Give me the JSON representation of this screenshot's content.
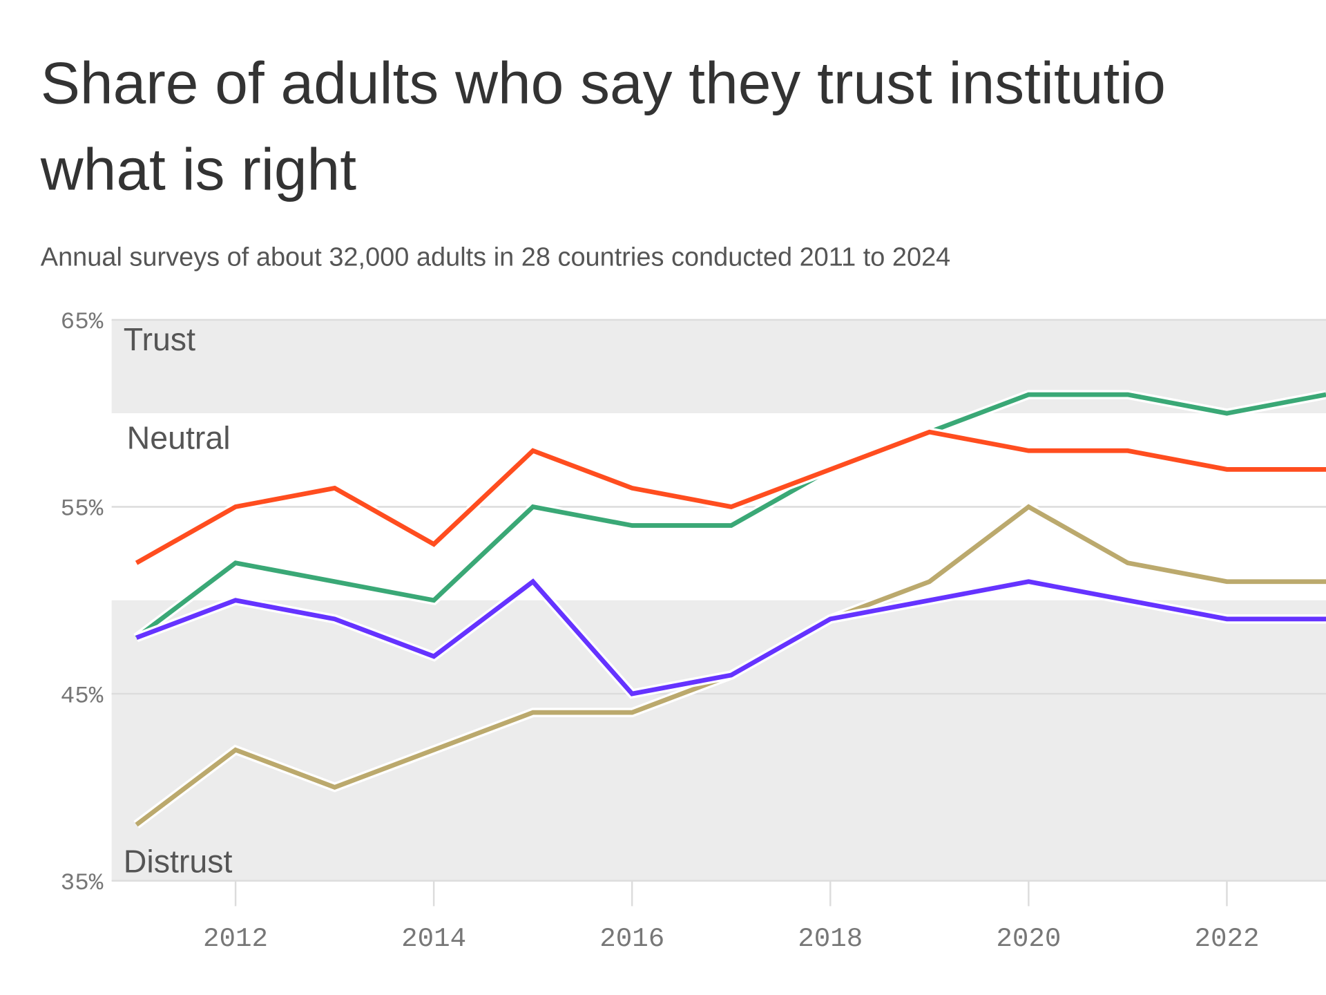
{
  "chart_data": {
    "type": "line",
    "title": [
      "Share of adults who say they trust institutio",
      "what is right"
    ],
    "subtitle": "Annual surveys of about 32,000 adults in 28 countries conducted 2011 to 2024",
    "x": [
      2011,
      2012,
      2013,
      2014,
      2015,
      2016,
      2017,
      2018,
      2019,
      2020,
      2021,
      2022,
      2023
    ],
    "series": [
      {
        "color": "#bba96d",
        "values": [
          38,
          42,
          40,
          42,
          44,
          44,
          46,
          49,
          51,
          55,
          52,
          51,
          51
        ]
      },
      {
        "color": "#3aa876",
        "values": [
          48,
          52,
          51,
          50,
          55,
          54,
          54,
          57,
          59,
          61,
          61,
          60,
          61
        ]
      },
      {
        "color": "#6533ff",
        "values": [
          48,
          50,
          49,
          47,
          51,
          45,
          46,
          49,
          50,
          51,
          50,
          49,
          49
        ]
      },
      {
        "color": "#ff4d1f",
        "values": [
          52,
          55,
          56,
          53,
          58,
          56,
          55,
          57,
          59,
          58,
          58,
          57,
          57
        ]
      }
    ],
    "bands": [
      {
        "label": "Trust",
        "from": 60,
        "to": 65,
        "color": "#ececec"
      },
      {
        "label": "Neutral",
        "from": 50,
        "to": 60,
        "color": "#ffffff"
      },
      {
        "label": "Distrust",
        "from": 35,
        "to": 50,
        "color": "#ececec"
      }
    ],
    "xlim": [
      2010.75,
      2023
    ],
    "ylim": [
      35,
      65
    ],
    "xticks": [
      2012,
      2014,
      2016,
      2018,
      2020,
      2022
    ],
    "yticks": [
      {
        "value": 35,
        "label": "35%"
      },
      {
        "value": 45,
        "label": "45%"
      },
      {
        "value": 55,
        "label": "55%"
      },
      {
        "value": 65,
        "label": "65%"
      }
    ],
    "grid": true
  }
}
